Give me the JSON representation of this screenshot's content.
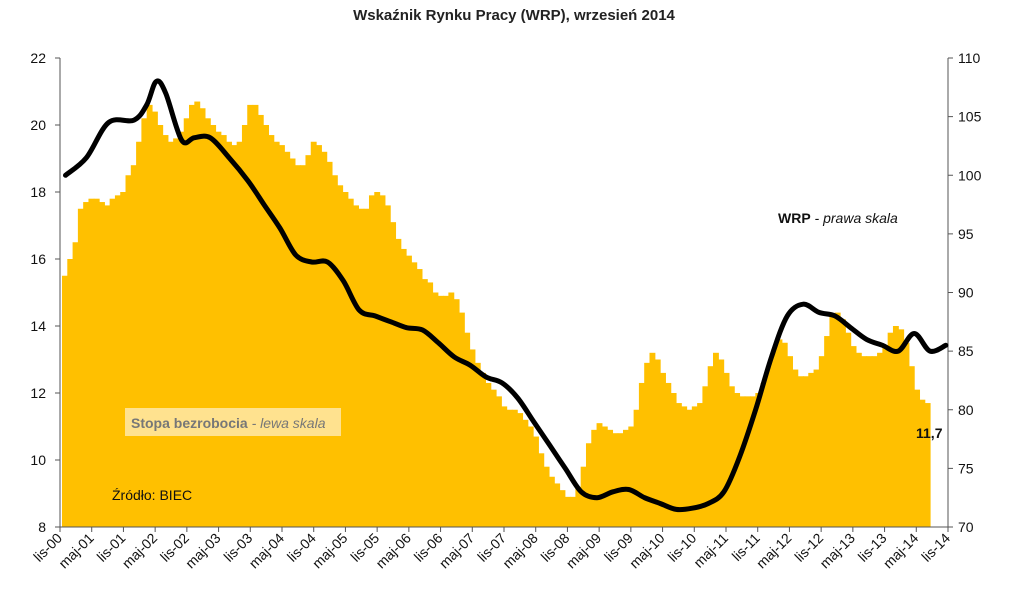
{
  "chart_data": {
    "type": "bar+line",
    "title": "Wskaźnik Rynku Pracy (WRP), wrzesień 2014",
    "left_axis": {
      "ylim": [
        8,
        22
      ],
      "ticks": [
        8,
        10,
        12,
        14,
        16,
        18,
        20,
        22
      ]
    },
    "right_axis": {
      "ylim": [
        70,
        110
      ],
      "ticks": [
        70,
        75,
        80,
        85,
        90,
        95,
        100,
        105,
        110
      ]
    },
    "x_tick_labels": [
      "lis-00",
      "maj-01",
      "lis-01",
      "maj-02",
      "lis-02",
      "maj-03",
      "lis-03",
      "maj-04",
      "lis-04",
      "maj-05",
      "lis-05",
      "maj-06",
      "lis-06",
      "maj-07",
      "lis-07",
      "maj-08",
      "lis-08",
      "maj-09",
      "lis-09",
      "maj-10",
      "lis-10",
      "maj-11",
      "lis-11",
      "maj-12",
      "lis-12",
      "maj-13",
      "lis-13",
      "maj-14",
      "lis-14"
    ],
    "x_start": "2000-11",
    "x_end": "2014-11",
    "grid": false,
    "series": [
      {
        "name": "Stopa bezrobocia",
        "axis": "left",
        "type": "bar",
        "color": "#FFC000",
        "values": [
          15.5,
          16.0,
          16.5,
          17.5,
          17.7,
          17.8,
          17.8,
          17.7,
          17.6,
          17.8,
          17.9,
          18.0,
          18.5,
          18.8,
          19.5,
          20.2,
          20.6,
          20.4,
          20.0,
          19.7,
          19.5,
          19.6,
          19.8,
          20.2,
          20.6,
          20.7,
          20.5,
          20.2,
          20.0,
          19.8,
          19.7,
          19.5,
          19.4,
          19.5,
          20.0,
          20.6,
          20.6,
          20.3,
          20.0,
          19.7,
          19.5,
          19.4,
          19.2,
          19.0,
          18.8,
          18.8,
          19.1,
          19.5,
          19.4,
          19.2,
          18.9,
          18.5,
          18.2,
          18.0,
          17.8,
          17.6,
          17.5,
          17.5,
          17.9,
          18.0,
          17.9,
          17.6,
          17.1,
          16.6,
          16.3,
          16.1,
          15.9,
          15.7,
          15.4,
          15.3,
          15.0,
          14.9,
          14.9,
          15.0,
          14.8,
          14.4,
          13.8,
          13.3,
          12.9,
          12.6,
          12.3,
          12.1,
          11.9,
          11.6,
          11.5,
          11.5,
          11.4,
          11.2,
          11.0,
          10.7,
          10.2,
          9.8,
          9.5,
          9.3,
          9.1,
          8.9,
          8.9,
          9.2,
          9.8,
          10.5,
          10.9,
          11.1,
          11.0,
          10.9,
          10.8,
          10.8,
          10.9,
          11.0,
          11.5,
          12.3,
          12.9,
          13.2,
          13.0,
          12.6,
          12.3,
          12.0,
          11.7,
          11.6,
          11.5,
          11.6,
          11.7,
          12.2,
          12.8,
          13.2,
          13.0,
          12.6,
          12.2,
          12.0,
          11.9,
          11.9,
          11.9,
          12.0,
          12.3,
          12.8,
          13.3,
          13.6,
          13.5,
          13.1,
          12.7,
          12.5,
          12.5,
          12.6,
          12.7,
          13.1,
          13.7,
          14.3,
          14.4,
          14.2,
          13.8,
          13.4,
          13.2,
          13.1,
          13.1,
          13.1,
          13.2,
          13.4,
          13.8,
          14.0,
          13.9,
          13.5,
          12.8,
          12.1,
          11.8,
          11.7
        ]
      },
      {
        "name": "WRP",
        "axis": "right",
        "type": "line",
        "color": "#000000",
        "values": [
          [
            2000.92,
            100.0
          ],
          [
            2001.25,
            101.5
          ],
          [
            2001.6,
            104.5
          ],
          [
            2002.0,
            104.7
          ],
          [
            2002.2,
            106.0
          ],
          [
            2002.35,
            108.0
          ],
          [
            2002.5,
            107.0
          ],
          [
            2002.75,
            103.0
          ],
          [
            2002.95,
            103.2
          ],
          [
            2003.2,
            103.2
          ],
          [
            2003.5,
            101.5
          ],
          [
            2003.8,
            99.5
          ],
          [
            2004.05,
            97.5
          ],
          [
            2004.3,
            95.5
          ],
          [
            2004.55,
            93.2
          ],
          [
            2004.8,
            92.6
          ],
          [
            2005.05,
            92.6
          ],
          [
            2005.3,
            91.0
          ],
          [
            2005.55,
            88.5
          ],
          [
            2005.8,
            88.0
          ],
          [
            2006.05,
            87.5
          ],
          [
            2006.3,
            87.0
          ],
          [
            2006.55,
            86.8
          ],
          [
            2006.8,
            85.7
          ],
          [
            2007.05,
            84.5
          ],
          [
            2007.3,
            83.8
          ],
          [
            2007.55,
            82.8
          ],
          [
            2007.8,
            82.3
          ],
          [
            2008.05,
            81.0
          ],
          [
            2008.3,
            79.0
          ],
          [
            2008.55,
            77.0
          ],
          [
            2008.8,
            75.0
          ],
          [
            2009.05,
            73.0
          ],
          [
            2009.3,
            72.5
          ],
          [
            2009.55,
            73.0
          ],
          [
            2009.8,
            73.2
          ],
          [
            2010.05,
            72.5
          ],
          [
            2010.3,
            72.0
          ],
          [
            2010.55,
            71.5
          ],
          [
            2010.8,
            71.6
          ],
          [
            2011.05,
            72.0
          ],
          [
            2011.3,
            73.0
          ],
          [
            2011.55,
            76.0
          ],
          [
            2011.8,
            80.0
          ],
          [
            2012.05,
            84.5
          ],
          [
            2012.3,
            88.0
          ],
          [
            2012.55,
            89.0
          ],
          [
            2012.8,
            88.3
          ],
          [
            2013.05,
            88.0
          ],
          [
            2013.3,
            87.0
          ],
          [
            2013.55,
            86.0
          ],
          [
            2013.8,
            85.5
          ],
          [
            2014.05,
            85.0
          ],
          [
            2014.3,
            86.5
          ],
          [
            2014.55,
            85.0
          ],
          [
            2014.8,
            85.5
          ]
        ]
      }
    ],
    "annotations": {
      "wrp_label_bold": "WRP",
      "wrp_label_rest": " - prawa skala",
      "unemp_label_bold": "Stopa bezrobocia",
      "unemp_label_rest": " - lewa skala",
      "last_value": "11,7",
      "source": "Źródło: BIEC"
    }
  }
}
